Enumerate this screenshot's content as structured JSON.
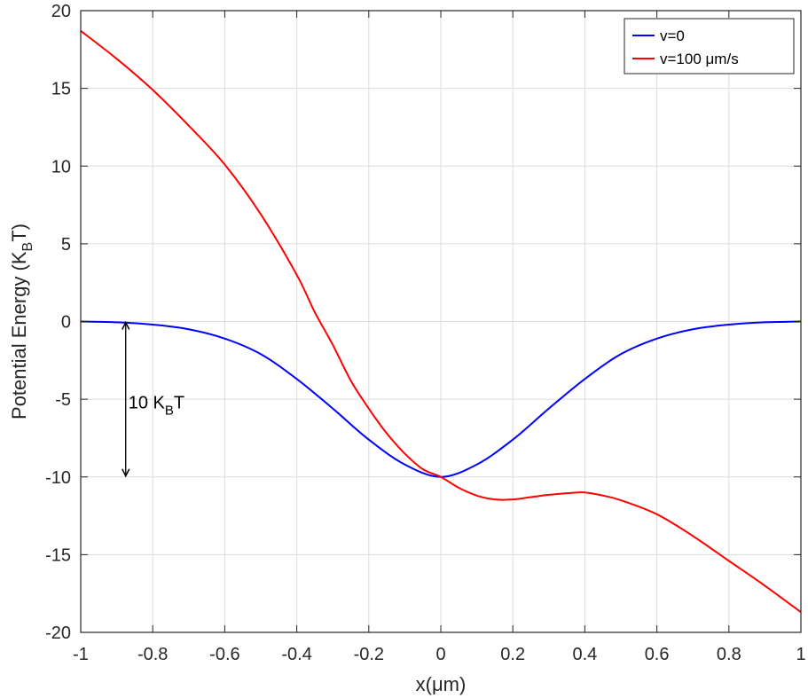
{
  "chart_data": {
    "type": "line",
    "title": "",
    "xlabel": "x(μm)",
    "ylabel": "Potential Energy (K",
    "ylabel_sub": "B",
    "ylabel_tail": "T)",
    "xlim": [
      -1,
      1
    ],
    "ylim": [
      -20,
      20
    ],
    "grid": true,
    "legend_position": "top-right",
    "xticks": [
      -1,
      -0.8,
      -0.6,
      -0.4,
      -0.2,
      0,
      0.2,
      0.4,
      0.6,
      0.8,
      1
    ],
    "xtick_labels": [
      "-1",
      "-0.8",
      "-0.6",
      "-0.4",
      "-0.2",
      "0",
      "0.2",
      "0.4",
      "0.6",
      "0.8",
      "1"
    ],
    "yticks": [
      20,
      15,
      10,
      5,
      0,
      -5,
      -10,
      -15,
      -20
    ],
    "ytick_labels": [
      "20",
      "15",
      "10",
      "5",
      "0",
      "-5",
      "-10",
      "-15",
      "-20"
    ],
    "series": [
      {
        "name": "v=0",
        "color": "#0000ff",
        "x": [
          -1,
          -0.9,
          -0.8,
          -0.7,
          -0.6,
          -0.5,
          -0.4,
          -0.3,
          -0.2,
          -0.1,
          0,
          0.1,
          0.2,
          0.3,
          0.4,
          0.5,
          0.6,
          0.7,
          0.8,
          0.9,
          1
        ],
        "values": [
          0,
          -0.05,
          -0.2,
          -0.5,
          -1.1,
          -2.1,
          -3.7,
          -5.6,
          -7.6,
          -9.2,
          -10,
          -9.2,
          -7.6,
          -5.6,
          -3.7,
          -2.1,
          -1.1,
          -0.5,
          -0.2,
          -0.05,
          0
        ]
      },
      {
        "name": "v=100 μm/s",
        "color": "#ff0000",
        "x": [
          -1,
          -0.9,
          -0.8,
          -0.7,
          -0.6,
          -0.5,
          -0.4,
          -0.35,
          -0.3,
          -0.25,
          -0.2,
          -0.15,
          -0.1,
          -0.05,
          0,
          0.05,
          0.1,
          0.15,
          0.2,
          0.25,
          0.3,
          0.35,
          0.4,
          0.45,
          0.5,
          0.6,
          0.7,
          0.8,
          0.9,
          1
        ],
        "values": [
          18.7,
          16.9,
          14.9,
          12.6,
          10.1,
          6.9,
          3.0,
          0.6,
          -1.5,
          -3.8,
          -5.6,
          -7.2,
          -8.5,
          -9.5,
          -10.0,
          -10.7,
          -11.2,
          -11.45,
          -11.45,
          -11.3,
          -11.15,
          -11.05,
          -11.0,
          -11.2,
          -11.5,
          -12.4,
          -13.8,
          -15.4,
          -17.0,
          -18.7
        ]
      }
    ],
    "annotation": {
      "text": "10 K",
      "sub": "B",
      "tail": "T",
      "x": -0.875,
      "y_from": 0,
      "y_to": -10
    }
  }
}
